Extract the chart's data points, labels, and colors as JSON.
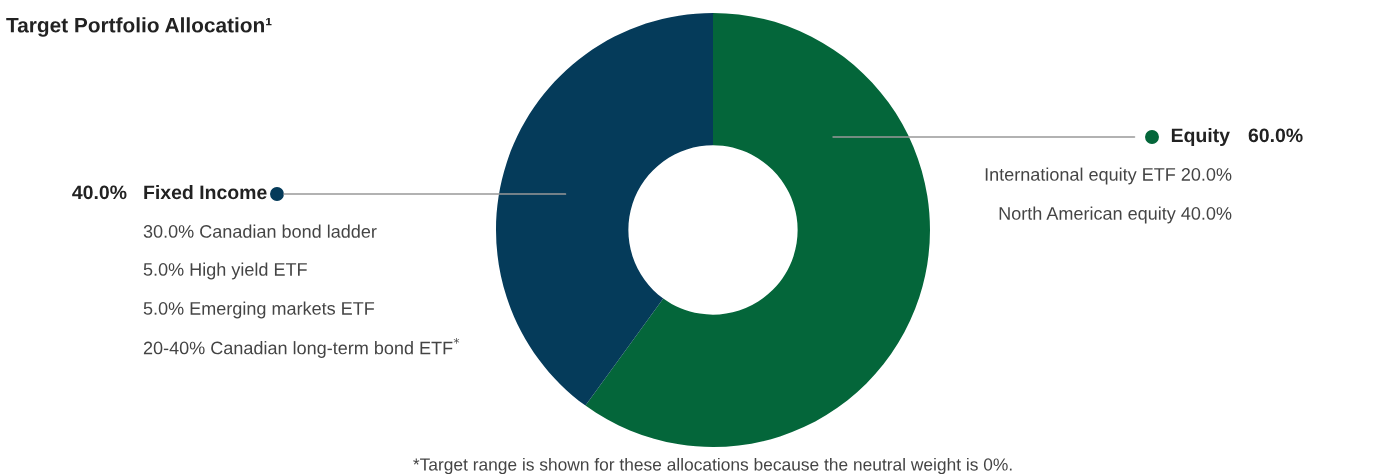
{
  "chart_data": {
    "type": "donut",
    "title": "Target Portfolio Allocation¹",
    "categories": [
      "Equity",
      "Fixed Income"
    ],
    "values": [
      60,
      40
    ],
    "colors": [
      "#04663a",
      "#053b5a"
    ],
    "value_labels": [
      "60.0%",
      "40.0%"
    ],
    "annotations": [
      "International equity ETF 20.0%",
      "North American equity 40.0%",
      "30.0% Canadian bond ladder",
      "5.0% High yield ETF",
      "5.0% Emerging markets ETF",
      "20-40% Canadian long-term bond ETF$^{*}$",
      "*Target range is shown for these allocations because the neutral weight is 0%."
    ]
  }
}
